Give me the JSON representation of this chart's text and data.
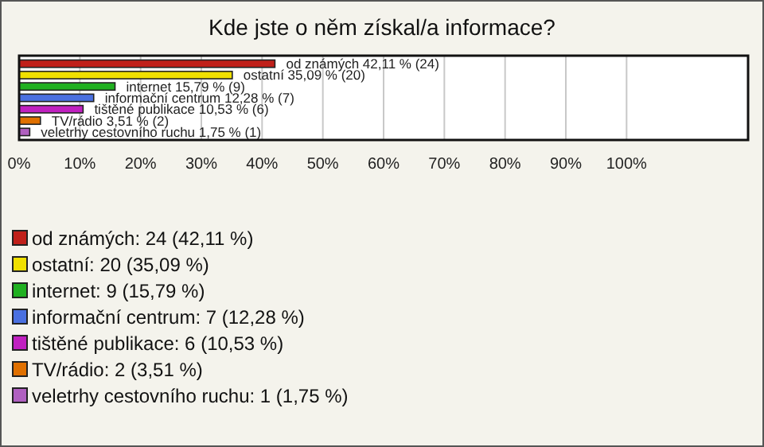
{
  "chart_data": {
    "type": "bar",
    "orientation": "horizontal",
    "title": "Kde jste o něm získal/a informace?",
    "categories": [
      null,
      null,
      null,
      null,
      null,
      null,
      null
    ],
    "values": [
      42.11,
      35.09,
      15.79,
      12.28,
      10.53,
      3.51,
      1.75
    ],
    "colors": [
      "#c0201a",
      "#f0e000",
      "#20b020",
      "#4a70e0",
      "#c020c0",
      "#e07000",
      "#b060c0"
    ],
    "value_labels": [
      "od známých 42,11 % (24)",
      "ostatní 35,09 % (20)",
      "internet 15,79 % (9)",
      "informační centrum 12,28 % (7)",
      "tištěné publikace 10,53 % (6)",
      "TV/rádio 3,51 % (2)",
      "veletrhy cestovního ruchu 1,75 % (1)"
    ],
    "annotations": [
      "od známých: 24 (42,11 %)",
      "ostatní: 20 (35,09 %)",
      "internet: 9 (15,79 %)",
      "informační centrum: 7 (12,28 %)",
      "tištěné publikace: 6 (10,53 %)",
      "TV/rádio: 2 (3,51 %)",
      "veletrhy cestovního ruchu: 1 (1,75 %)"
    ],
    "xlim": [
      0,
      120
    ],
    "xticks": [
      {
        "value": 0,
        "label": "0%"
      },
      {
        "value": 10,
        "label": "10%"
      },
      {
        "value": 20,
        "label": "20%"
      },
      {
        "value": 30,
        "label": "30%"
      },
      {
        "value": 40,
        "label": "40%"
      },
      {
        "value": 50,
        "label": "50%"
      },
      {
        "value": 60,
        "label": "60%"
      },
      {
        "value": 70,
        "label": "70%"
      },
      {
        "value": 80,
        "label": "80%"
      },
      {
        "value": 90,
        "label": "90%"
      },
      {
        "value": 100,
        "label": "100%"
      }
    ],
    "grid": "x"
  }
}
